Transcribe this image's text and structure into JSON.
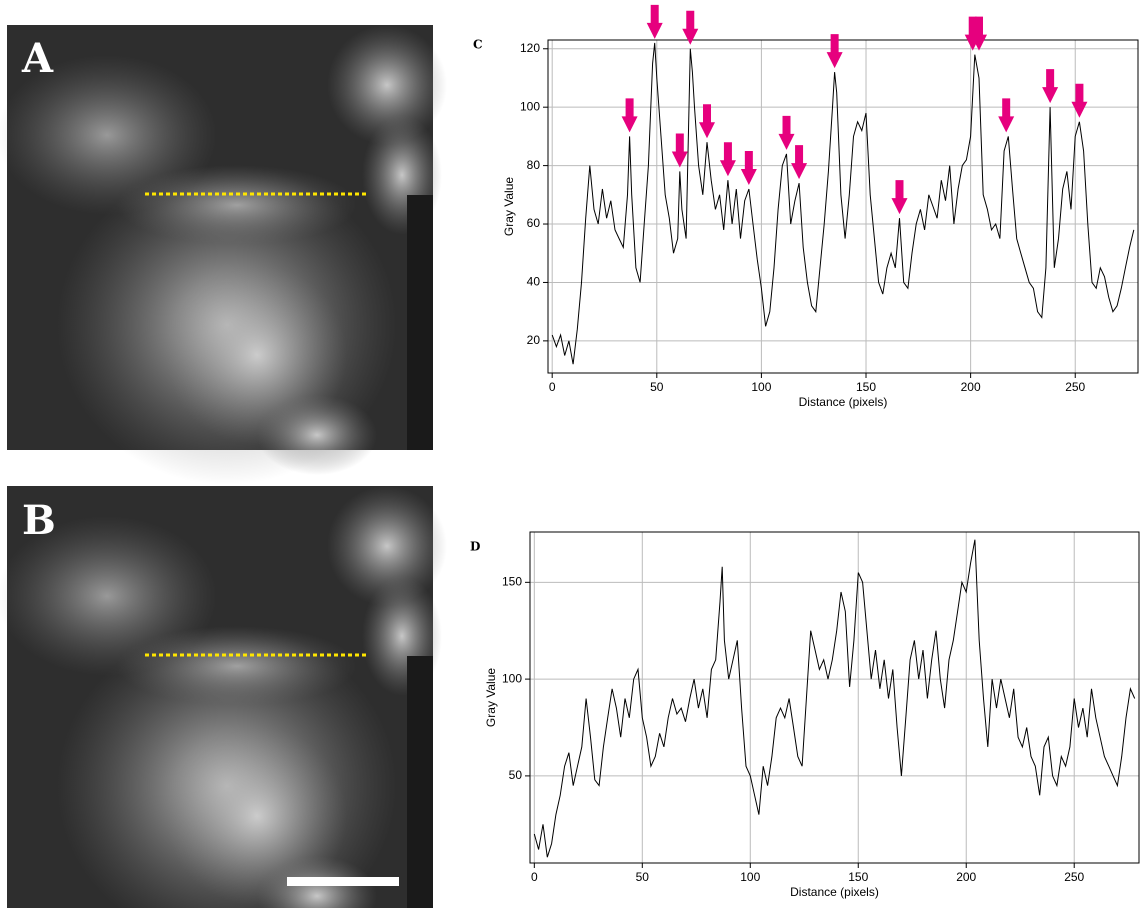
{
  "panels": {
    "a_label": "A",
    "b_label": "B"
  },
  "chart_data": [
    {
      "type": "line",
      "label": "C",
      "xlabel": "Distance (pixels)",
      "ylabel": "Gray Value",
      "color": "#000000",
      "grid": true,
      "xlim": [
        -2,
        280
      ],
      "ylim": [
        9,
        123
      ],
      "xticks": [
        0,
        50,
        100,
        150,
        200,
        250
      ],
      "yticks": [
        20,
        40,
        60,
        80,
        100,
        120
      ],
      "x": [
        0,
        2,
        4,
        6,
        8,
        10,
        12,
        14,
        16,
        18,
        20,
        22,
        24,
        26,
        28,
        30,
        32,
        34,
        36,
        37,
        38,
        40,
        42,
        44,
        46,
        48,
        49,
        50,
        52,
        54,
        56,
        58,
        60,
        61,
        62,
        64,
        66,
        67,
        68,
        70,
        72,
        74,
        76,
        78,
        80,
        82,
        84,
        86,
        88,
        90,
        92,
        94,
        96,
        98,
        100,
        102,
        104,
        106,
        108,
        110,
        112,
        114,
        116,
        118,
        120,
        122,
        124,
        126,
        128,
        130,
        132,
        134,
        135,
        136,
        138,
        140,
        142,
        144,
        146,
        148,
        150,
        152,
        154,
        156,
        158,
        160,
        162,
        164,
        166,
        168,
        170,
        172,
        174,
        176,
        178,
        180,
        182,
        184,
        186,
        188,
        190,
        192,
        194,
        196,
        198,
        200,
        202,
        204,
        206,
        208,
        210,
        212,
        214,
        216,
        218,
        220,
        222,
        224,
        226,
        228,
        230,
        232,
        234,
        236,
        238,
        240,
        242,
        244,
        246,
        248,
        250,
        252,
        254,
        256,
        258,
        260,
        262,
        264,
        266,
        268,
        270,
        272,
        274,
        276,
        278
      ],
      "values": [
        22,
        18,
        22,
        15,
        20,
        12,
        24,
        40,
        62,
        80,
        65,
        60,
        72,
        62,
        68,
        58,
        55,
        52,
        70,
        90,
        70,
        45,
        40,
        60,
        80,
        115,
        122,
        110,
        90,
        70,
        62,
        50,
        55,
        78,
        65,
        55,
        120,
        112,
        100,
        80,
        70,
        88,
        75,
        65,
        70,
        58,
        75,
        60,
        72,
        55,
        68,
        72,
        60,
        48,
        38,
        25,
        30,
        45,
        65,
        80,
        84,
        60,
        68,
        74,
        52,
        40,
        32,
        30,
        45,
        60,
        78,
        100,
        112,
        105,
        70,
        55,
        70,
        90,
        95,
        92,
        98,
        70,
        55,
        40,
        36,
        45,
        50,
        45,
        62,
        40,
        38,
        50,
        60,
        65,
        58,
        70,
        66,
        62,
        75,
        68,
        80,
        60,
        72,
        80,
        82,
        90,
        118,
        110,
        70,
        65,
        58,
        60,
        55,
        85,
        90,
        72,
        55,
        50,
        45,
        40,
        38,
        30,
        28,
        45,
        100,
        45,
        55,
        72,
        78,
        65,
        90,
        95,
        85,
        60,
        40,
        38,
        45,
        42,
        35,
        30,
        32,
        38,
        45,
        52,
        58
      ],
      "markers": {
        "color": "#e6007e",
        "x": [
          37,
          49,
          61,
          66,
          74,
          84,
          94,
          112,
          118,
          135,
          166,
          201,
          204,
          217,
          238,
          252
        ],
        "y": [
          90,
          122,
          78,
          120,
          88,
          75,
          72,
          84,
          74,
          112,
          62,
          118,
          118,
          90,
          100,
          95
        ]
      }
    },
    {
      "type": "line",
      "label": "D",
      "xlabel": "Distance (pixels)",
      "ylabel": "Gray Value",
      "color": "#000000",
      "grid": true,
      "xlim": [
        -2,
        280
      ],
      "ylim": [
        5,
        176
      ],
      "xticks": [
        0,
        50,
        100,
        150,
        200,
        250
      ],
      "yticks": [
        50,
        100,
        150
      ],
      "x": [
        0,
        2,
        4,
        6,
        8,
        10,
        12,
        14,
        16,
        18,
        20,
        22,
        24,
        26,
        28,
        30,
        32,
        34,
        36,
        38,
        40,
        42,
        44,
        46,
        48,
        50,
        52,
        54,
        56,
        58,
        60,
        62,
        64,
        66,
        68,
        70,
        72,
        74,
        76,
        78,
        80,
        82,
        84,
        86,
        87,
        88,
        90,
        92,
        94,
        96,
        98,
        100,
        102,
        104,
        106,
        108,
        110,
        112,
        114,
        116,
        118,
        120,
        122,
        124,
        126,
        128,
        130,
        132,
        134,
        136,
        138,
        140,
        142,
        144,
        146,
        148,
        150,
        152,
        154,
        156,
        158,
        160,
        162,
        164,
        166,
        168,
        170,
        172,
        174,
        176,
        178,
        180,
        182,
        184,
        186,
        188,
        190,
        192,
        194,
        196,
        198,
        200,
        202,
        204,
        206,
        208,
        210,
        212,
        214,
        216,
        218,
        220,
        222,
        224,
        226,
        228,
        230,
        232,
        234,
        236,
        238,
        240,
        242,
        244,
        246,
        248,
        250,
        252,
        254,
        256,
        258,
        260,
        262,
        264,
        266,
        268,
        270,
        272,
        274,
        276,
        278
      ],
      "values": [
        20,
        12,
        25,
        8,
        15,
        30,
        40,
        55,
        62,
        45,
        55,
        65,
        90,
        70,
        48,
        45,
        65,
        80,
        95,
        85,
        70,
        90,
        80,
        100,
        105,
        80,
        70,
        55,
        60,
        72,
        65,
        80,
        90,
        82,
        85,
        78,
        90,
        100,
        85,
        95,
        80,
        105,
        110,
        140,
        158,
        120,
        100,
        110,
        120,
        85,
        55,
        50,
        40,
        30,
        55,
        45,
        60,
        80,
        85,
        80,
        90,
        75,
        60,
        55,
        90,
        125,
        115,
        105,
        110,
        100,
        110,
        125,
        145,
        135,
        96,
        120,
        155,
        150,
        125,
        100,
        115,
        95,
        110,
        90,
        105,
        75,
        50,
        80,
        110,
        120,
        100,
        115,
        90,
        110,
        125,
        100,
        85,
        110,
        120,
        135,
        150,
        145,
        160,
        172,
        120,
        90,
        65,
        100,
        85,
        100,
        90,
        80,
        95,
        70,
        65,
        75,
        60,
        55,
        40,
        65,
        70,
        50,
        45,
        60,
        55,
        65,
        90,
        75,
        85,
        70,
        95,
        80,
        70,
        60,
        55,
        50,
        45,
        60,
        80,
        95,
        90
      ]
    }
  ]
}
